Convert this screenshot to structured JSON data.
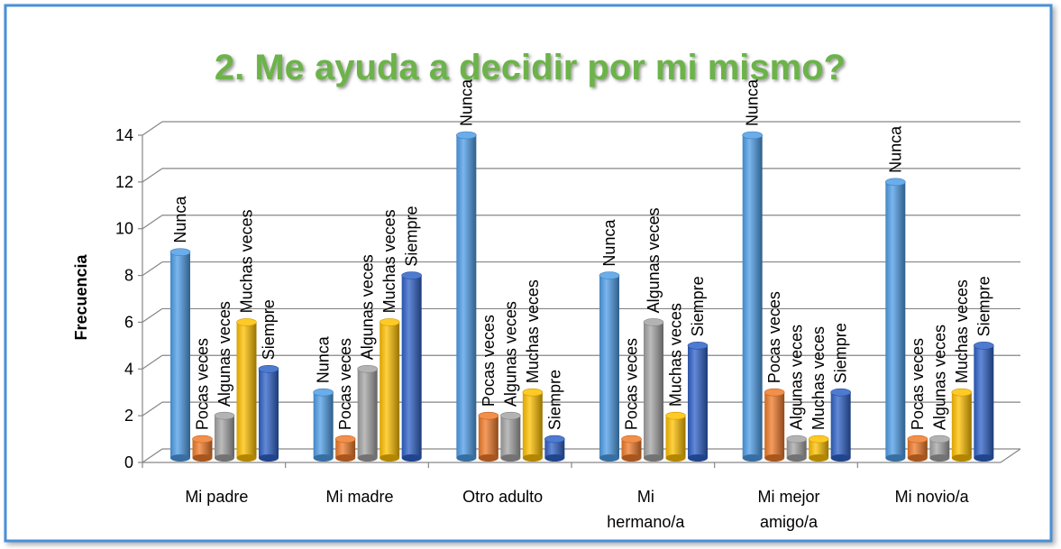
{
  "chart_data": {
    "type": "bar",
    "title": "2. Me ayuda a decidir por mi mismo?",
    "y_label": "Frecuencia",
    "categories": [
      "Mi padre",
      "Mi madre",
      "Otro adulto",
      "Mi hermano/a",
      "Mi mejor amigo/a",
      "Mi novio/a"
    ],
    "series": [
      {
        "name": "Nunca",
        "color": "#4f9ee8",
        "values": [
          9,
          3,
          14,
          8,
          14,
          12
        ]
      },
      {
        "name": "Pocas veces",
        "color": "#f07b2a",
        "values": [
          1,
          1,
          2,
          1,
          3,
          1
        ]
      },
      {
        "name": "Algunas veces",
        "color": "#a5a5a5",
        "values": [
          2,
          4,
          2,
          6,
          1,
          1
        ]
      },
      {
        "name": "Muchas veces",
        "color": "#ffc000",
        "values": [
          6,
          6,
          3,
          2,
          1,
          3
        ]
      },
      {
        "name": "Siempre",
        "color": "#2f62c8",
        "values": [
          4,
          8,
          1,
          5,
          3,
          5
        ]
      }
    ],
    "ylim": [
      0,
      14
    ],
    "yticks": [
      0,
      2,
      4,
      6,
      8,
      10,
      12,
      14
    ],
    "grid": true
  }
}
